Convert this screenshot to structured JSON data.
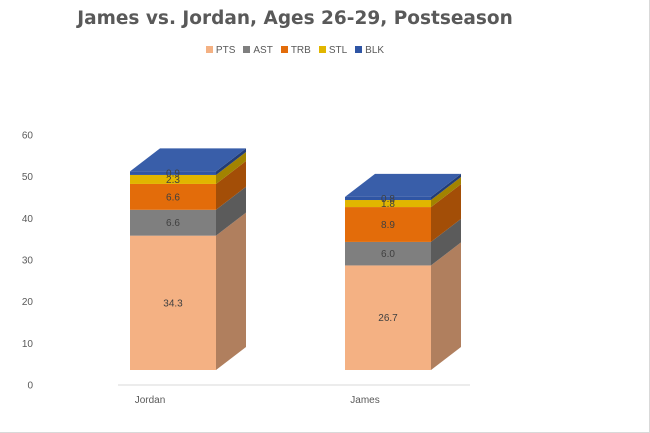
{
  "chart_data": {
    "type": "bar",
    "stacked": true,
    "title": "James vs. Jordan,  Ages 26-29, Postseason",
    "xlabel": "",
    "ylabel": "",
    "categories": [
      "Jordan",
      "James"
    ],
    "ylim": [
      0,
      60
    ],
    "yticks": [
      0,
      10,
      20,
      30,
      40,
      50,
      60
    ],
    "legend_position": "top",
    "grid": false,
    "series": [
      {
        "name": "PTS",
        "values": [
          34.3,
          26.7
        ],
        "color": "#f4b183",
        "labels": [
          "34.3",
          "26.7"
        ]
      },
      {
        "name": "AST",
        "values": [
          6.6,
          6.0
        ],
        "color": "#7f7f7f",
        "labels": [
          "6.6",
          "6.0"
        ]
      },
      {
        "name": "TRB",
        "values": [
          6.6,
          8.9
        ],
        "color": "#e36c0a",
        "labels": [
          "6.6",
          "8.9"
        ]
      },
      {
        "name": "STL",
        "values": [
          2.3,
          1.8
        ],
        "color": "#e1b600",
        "labels": [
          "2.3",
          "1.8"
        ]
      },
      {
        "name": "BLK",
        "values": [
          0.9,
          0.8
        ],
        "color": "#2f55a4",
        "labels": [
          "0.9",
          "0.8"
        ]
      }
    ]
  }
}
